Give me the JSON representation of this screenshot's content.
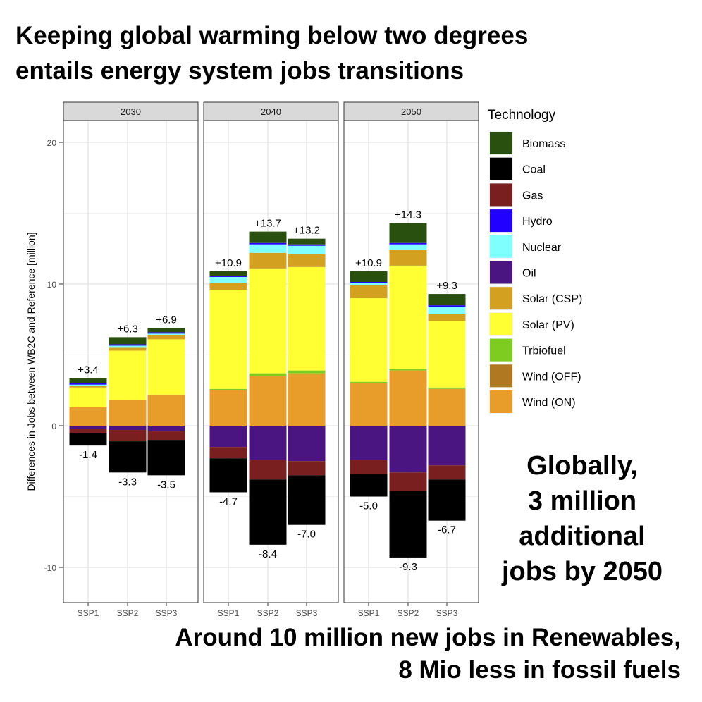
{
  "headline": {
    "line1": "Keeping global warming below two degrees",
    "line2": "entails energy system jobs transitions"
  },
  "side_note": {
    "line1": "Globally,",
    "line2": "3 million",
    "line3": "additional",
    "line4": "jobs by 2050"
  },
  "bottom_note": {
    "line1": "Around 10 million new jobs in Renewables,",
    "line2": "8 Mio less in fossil fuels"
  },
  "chart_data": {
    "type": "bar",
    "stacked": true,
    "ylabel": "Differences in Jobs between WB2C and Reference [million]",
    "ylim": [
      -12.5,
      21.5
    ],
    "yticks": [
      -10,
      0,
      10,
      20
    ],
    "yticklabels": [
      "-10",
      "0",
      "10",
      "20"
    ],
    "grid": true,
    "legend_title": "Technology",
    "legend_position": "right",
    "categories": [
      "SSP1",
      "SSP2",
      "SSP3"
    ],
    "panels": [
      {
        "title": "2030",
        "totals_positive": [
          "+3.4",
          "+6.3",
          "+6.9"
        ],
        "totals_negative": [
          "-1.4",
          "-3.3",
          "-3.5"
        ],
        "series": [
          {
            "name": "Wind (ON)",
            "values": [
              1.3,
              1.8,
              2.2
            ]
          },
          {
            "name": "Solar (PV)",
            "values": [
              1.4,
              3.5,
              3.9
            ]
          },
          {
            "name": "Solar (CSP)",
            "values": [
              0.1,
              0.2,
              0.3
            ]
          },
          {
            "name": "Nuclear",
            "values": [
              0.1,
              0.15,
              0.1
            ]
          },
          {
            "name": "Hydro",
            "values": [
              0.1,
              0.1,
              0.1
            ]
          },
          {
            "name": "Biomass",
            "values": [
              0.35,
              0.5,
              0.3
            ]
          },
          {
            "name": "Oil",
            "values": [
              -0.2,
              -0.3,
              -0.4
            ]
          },
          {
            "name": "Gas",
            "values": [
              -0.3,
              -0.8,
              -0.6
            ]
          },
          {
            "name": "Coal",
            "values": [
              -0.9,
              -2.2,
              -2.5
            ]
          }
        ]
      },
      {
        "title": "2040",
        "totals_positive": [
          "+10.9",
          "+13.7",
          "+13.2"
        ],
        "totals_negative": [
          "-4.7",
          "-8.4",
          "-7.0"
        ],
        "series": [
          {
            "name": "Wind (ON)",
            "values": [
              2.5,
              3.5,
              3.7
            ]
          },
          {
            "name": "Trbiofuel",
            "values": [
              0.1,
              0.2,
              0.2
            ]
          },
          {
            "name": "Solar (PV)",
            "values": [
              7.0,
              7.4,
              7.3
            ]
          },
          {
            "name": "Solar (CSP)",
            "values": [
              0.5,
              1.1,
              0.9
            ]
          },
          {
            "name": "Nuclear",
            "values": [
              0.4,
              0.6,
              0.6
            ]
          },
          {
            "name": "Hydro",
            "values": [
              0.05,
              0.1,
              0.1
            ]
          },
          {
            "name": "Biomass",
            "values": [
              0.35,
              0.8,
              0.4
            ]
          },
          {
            "name": "Oil",
            "values": [
              -1.5,
              -2.4,
              -2.5
            ]
          },
          {
            "name": "Gas",
            "values": [
              -0.8,
              -1.4,
              -1.0
            ]
          },
          {
            "name": "Coal",
            "values": [
              -2.4,
              -4.6,
              -3.5
            ]
          }
        ]
      },
      {
        "title": "2050",
        "totals_positive": [
          "+10.9",
          "+14.3",
          "+9.3"
        ],
        "totals_negative": [
          "-5.0",
          "-9.3",
          "-6.7"
        ],
        "series": [
          {
            "name": "Wind (ON)",
            "values": [
              3.0,
              3.9,
              2.6
            ]
          },
          {
            "name": "Trbiofuel",
            "values": [
              0.1,
              0.1,
              0.1
            ]
          },
          {
            "name": "Solar (PV)",
            "values": [
              5.9,
              7.3,
              4.7
            ]
          },
          {
            "name": "Solar (CSP)",
            "values": [
              0.9,
              1.1,
              0.5
            ]
          },
          {
            "name": "Nuclear",
            "values": [
              0.2,
              0.4,
              0.5
            ]
          },
          {
            "name": "Hydro",
            "values": [
              0.05,
              0.1,
              0.1
            ]
          },
          {
            "name": "Biomass",
            "values": [
              0.75,
              1.4,
              0.8
            ]
          },
          {
            "name": "Oil",
            "values": [
              -2.4,
              -3.3,
              -2.8
            ]
          },
          {
            "name": "Gas",
            "values": [
              -1.0,
              -1.3,
              -1.0
            ]
          },
          {
            "name": "Coal",
            "values": [
              -1.6,
              -4.7,
              -2.9
            ]
          }
        ]
      }
    ],
    "legend": [
      {
        "name": "Biomass",
        "color": "#2a5010"
      },
      {
        "name": "Coal",
        "color": "#000000"
      },
      {
        "name": "Gas",
        "color": "#7a1f1f"
      },
      {
        "name": "Hydro",
        "color": "#2200ff"
      },
      {
        "name": "Nuclear",
        "color": "#80ffff"
      },
      {
        "name": "Oil",
        "color": "#4a1580"
      },
      {
        "name": "Solar (CSP)",
        "color": "#d4a020"
      },
      {
        "name": "Solar (PV)",
        "color": "#ffff33"
      },
      {
        "name": "Trbiofuel",
        "color": "#7fcc20"
      },
      {
        "name": "Wind (OFF)",
        "color": "#b07820"
      },
      {
        "name": "Wind (ON)",
        "color": "#e89c2a"
      }
    ]
  }
}
